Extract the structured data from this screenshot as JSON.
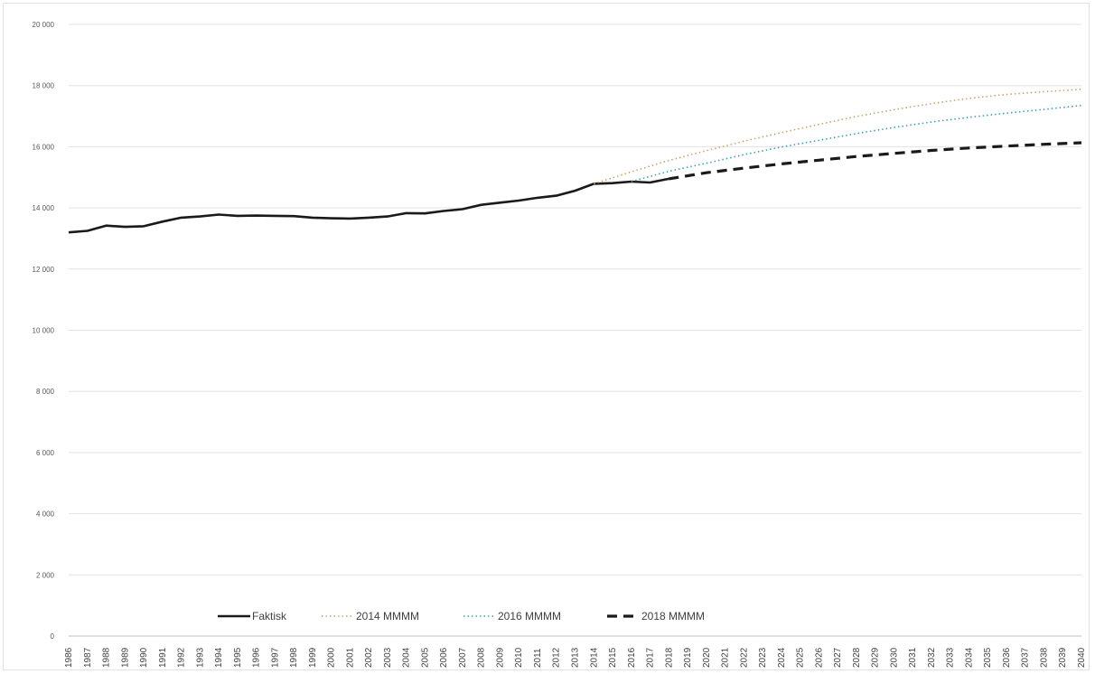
{
  "chart_data": {
    "type": "line",
    "title": "",
    "xlabel": "",
    "ylabel": "",
    "ylim": [
      0,
      20000
    ],
    "yticks": [
      0,
      2000,
      4000,
      6000,
      8000,
      10000,
      12000,
      14000,
      16000,
      18000,
      20000
    ],
    "ytick_labels": [
      "0",
      "2 000",
      "4 000",
      "6 000",
      "8 000",
      "10 000",
      "12 000",
      "14 000",
      "16 000",
      "18 000",
      "20 000"
    ],
    "xlim": [
      1986,
      2040
    ],
    "grid": "horizontal",
    "legend_position": "bottom",
    "series": [
      {
        "name": "Faktisk",
        "style": "solid",
        "color": "#1a1a1a",
        "x": [
          1986,
          1987,
          1988,
          1989,
          1990,
          1991,
          1992,
          1993,
          1994,
          1995,
          1996,
          1997,
          1998,
          1999,
          2000,
          2001,
          2002,
          2003,
          2004,
          2005,
          2006,
          2007,
          2008,
          2009,
          2010,
          2011,
          2012,
          2013,
          2014,
          2015,
          2016,
          2017,
          2018
        ],
        "values": [
          13200,
          13250,
          13420,
          13380,
          13400,
          13550,
          13680,
          13720,
          13780,
          13740,
          13750,
          13740,
          13730,
          13680,
          13660,
          13650,
          13680,
          13720,
          13830,
          13820,
          13900,
          13960,
          14100,
          14170,
          14240,
          14330,
          14400,
          14560,
          14790,
          14810,
          14860,
          14830,
          14950
        ]
      },
      {
        "name": "2014 MMMM",
        "style": "dotted",
        "color": "#c8a46a",
        "x": [
          2014,
          2016,
          2018,
          2020,
          2022,
          2024,
          2026,
          2028,
          2030,
          2032,
          2034,
          2036,
          2038,
          2040
        ],
        "values": [
          14790,
          15180,
          15550,
          15870,
          16180,
          16460,
          16730,
          16990,
          17210,
          17410,
          17580,
          17710,
          17800,
          17880
        ]
      },
      {
        "name": "2016 MMMM",
        "style": "dotted",
        "color": "#3aa0b8",
        "x": [
          2016,
          2018,
          2020,
          2022,
          2024,
          2026,
          2028,
          2030,
          2032,
          2034,
          2036,
          2038,
          2040
        ],
        "values": [
          14860,
          15200,
          15460,
          15740,
          15990,
          16210,
          16430,
          16630,
          16810,
          16960,
          17100,
          17220,
          17350
        ]
      },
      {
        "name": "2018 MMMM",
        "style": "dashed",
        "color": "#1a1a1a",
        "x": [
          2018,
          2020,
          2022,
          2024,
          2026,
          2028,
          2030,
          2032,
          2034,
          2036,
          2038,
          2040
        ],
        "values": [
          14950,
          15150,
          15300,
          15440,
          15560,
          15680,
          15780,
          15880,
          15960,
          16020,
          16080,
          16130
        ]
      }
    ]
  }
}
